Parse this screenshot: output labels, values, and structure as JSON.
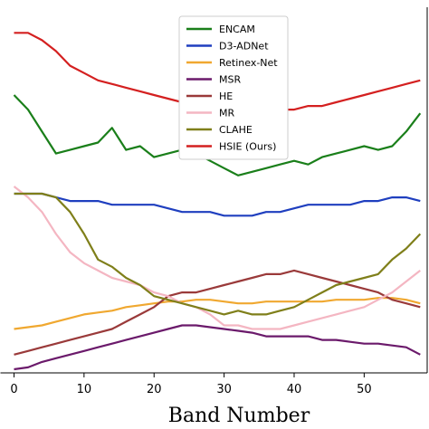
{
  "chart_data": {
    "type": "line",
    "xlabel": "Band Number",
    "ylabel": "",
    "xlim": [
      -2,
      59
    ],
    "ylim": [
      0,
      100
    ],
    "xticks": [
      0,
      10,
      20,
      30,
      40,
      50
    ],
    "grid": false,
    "legend_position": "top-center",
    "series": [
      {
        "name": "ENCAM",
        "color": "#1a7f1a",
        "x": [
          0,
          2,
          4,
          6,
          8,
          10,
          12,
          14,
          16,
          18,
          20,
          22,
          24,
          26,
          28,
          30,
          32,
          34,
          36,
          38,
          40,
          42,
          44,
          46,
          48,
          50,
          52,
          54,
          56,
          58
        ],
        "y": [
          76,
          72,
          66,
          60,
          61,
          62,
          63,
          67,
          61,
          62,
          59,
          60,
          61,
          60,
          58,
          56,
          54,
          55,
          56,
          57,
          58,
          57,
          59,
          60,
          61,
          62,
          61,
          62,
          66,
          71
        ]
      },
      {
        "name": "D3-ADNet",
        "color": "#1f3fbf",
        "x": [
          0,
          2,
          4,
          6,
          8,
          10,
          12,
          14,
          16,
          18,
          20,
          22,
          24,
          26,
          28,
          30,
          32,
          34,
          36,
          38,
          40,
          42,
          44,
          46,
          48,
          50,
          52,
          54,
          56,
          58
        ],
        "y": [
          49,
          49,
          49,
          48,
          47,
          47,
          47,
          46,
          46,
          46,
          46,
          45,
          44,
          44,
          44,
          43,
          43,
          43,
          44,
          44,
          45,
          46,
          46,
          46,
          46,
          47,
          47,
          48,
          48,
          47
        ]
      },
      {
        "name": "Retinex-Net",
        "color": "#f0a830",
        "x": [
          0,
          2,
          4,
          6,
          8,
          10,
          12,
          14,
          16,
          18,
          20,
          22,
          24,
          26,
          28,
          30,
          32,
          34,
          36,
          38,
          40,
          42,
          44,
          46,
          48,
          50,
          52,
          54,
          56,
          58
        ],
        "y": [
          12,
          12.5,
          13,
          14,
          15,
          16,
          16.5,
          17,
          18,
          18.5,
          19,
          19.5,
          19.5,
          20,
          20,
          19.5,
          19,
          19,
          19.5,
          19.5,
          19.5,
          19.5,
          19.5,
          20,
          20,
          20,
          20.5,
          20.5,
          20,
          19
        ]
      },
      {
        "name": "MSR",
        "color": "#6b1a6b",
        "x": [
          0,
          2,
          4,
          6,
          8,
          10,
          12,
          14,
          16,
          18,
          20,
          22,
          24,
          26,
          28,
          30,
          32,
          34,
          36,
          38,
          40,
          42,
          44,
          46,
          48,
          50,
          52,
          54,
          56,
          58
        ],
        "y": [
          1,
          1.5,
          3,
          4,
          5,
          6,
          7,
          8,
          9,
          10,
          11,
          12,
          13,
          13,
          12.5,
          12,
          11.5,
          11,
          10,
          10,
          10,
          10,
          9,
          9,
          8.5,
          8,
          8,
          7.5,
          7,
          5
        ]
      },
      {
        "name": "HE",
        "color": "#9a3a3a",
        "x": [
          0,
          2,
          4,
          6,
          8,
          10,
          12,
          14,
          16,
          18,
          20,
          22,
          24,
          26,
          28,
          30,
          32,
          34,
          36,
          38,
          40,
          42,
          44,
          46,
          48,
          50,
          52,
          54,
          56,
          58
        ],
        "y": [
          5,
          6,
          7,
          8,
          9,
          10,
          11,
          12,
          14,
          16,
          18,
          21,
          22,
          22,
          23,
          24,
          25,
          26,
          27,
          27,
          28,
          27,
          26,
          25,
          24,
          23,
          22,
          20,
          19,
          18
        ]
      },
      {
        "name": "MR",
        "color": "#f4b6c2",
        "x": [
          0,
          2,
          4,
          6,
          8,
          10,
          12,
          14,
          16,
          18,
          20,
          22,
          24,
          26,
          28,
          30,
          32,
          34,
          36,
          38,
          40,
          42,
          44,
          46,
          48,
          50,
          52,
          54,
          56,
          58
        ],
        "y": [
          51,
          48,
          44,
          38,
          33,
          30,
          28,
          26,
          25,
          24,
          22,
          21,
          19,
          18,
          16,
          13,
          13,
          12,
          12,
          12,
          13,
          14,
          15,
          16,
          17,
          18,
          20,
          22,
          25,
          28
        ]
      },
      {
        "name": "CLAHE",
        "color": "#7f7f1a",
        "x": [
          0,
          2,
          4,
          6,
          8,
          10,
          12,
          14,
          16,
          18,
          20,
          22,
          24,
          26,
          28,
          30,
          32,
          34,
          36,
          38,
          40,
          42,
          44,
          46,
          48,
          50,
          52,
          54,
          56,
          58
        ],
        "y": [
          49,
          49,
          49,
          48,
          44,
          38,
          31,
          29,
          26,
          24,
          21,
          20,
          19,
          18,
          17,
          16,
          17,
          16,
          16,
          17,
          18,
          20,
          22,
          24,
          25,
          26,
          27,
          31,
          34,
          38
        ]
      },
      {
        "name": "HSIE (Ours)",
        "color": "#d42020",
        "x": [
          0,
          2,
          4,
          6,
          8,
          10,
          12,
          14,
          16,
          18,
          20,
          22,
          24,
          26,
          28,
          30,
          32,
          34,
          36,
          38,
          40,
          42,
          44,
          46,
          48,
          50,
          52,
          54,
          56,
          58
        ],
        "y": [
          93,
          93,
          91,
          88,
          84,
          82,
          80,
          79,
          78,
          77,
          76,
          75,
          74,
          73,
          73,
          72,
          71,
          71,
          72,
          72,
          72,
          73,
          73,
          74,
          75,
          76,
          77,
          78,
          79,
          80
        ]
      }
    ]
  }
}
